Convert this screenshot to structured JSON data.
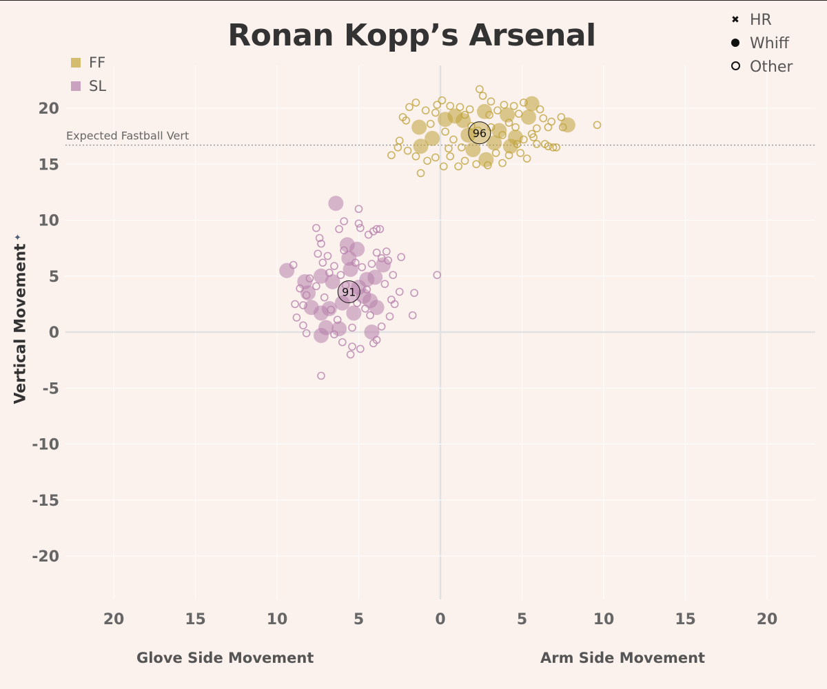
{
  "chart_data": {
    "type": "scatter",
    "title": "Ronan Kopp’s Arsenal",
    "xlabel_left": "Glove Side Movement",
    "xlabel_right": "Arm Side Movement",
    "ylabel": "Vertical Movement",
    "xlim": [
      -20,
      20
    ],
    "ylim": [
      -20,
      20
    ],
    "x_ticks": [
      -20,
      -15,
      -10,
      -5,
      0,
      5,
      10,
      15,
      20
    ],
    "x_tick_labels": [
      "20",
      "15",
      "10",
      "5",
      "0",
      "5",
      "10",
      "15",
      "20"
    ],
    "y_ticks": [
      20,
      15,
      10,
      5,
      0,
      -5,
      -10,
      -15,
      -20
    ],
    "y_tick_labels": [
      "20",
      "15",
      "10",
      "5",
      "0",
      "-5",
      "-10",
      "-15",
      "-20"
    ],
    "grid": true,
    "reference_line": {
      "label": "Expected Fastball Vert",
      "y": 16.7
    },
    "legend_pitch_types": [
      {
        "name": "FF",
        "color": "#d4bd6e"
      },
      {
        "name": "SL",
        "color": "#c9a2c0"
      }
    ],
    "legend_outcomes": [
      {
        "name": "HR",
        "icon": "x-mark-icon"
      },
      {
        "name": "Whiff",
        "icon": "filled-circle-icon"
      },
      {
        "name": "Other",
        "icon": "open-circle-icon"
      }
    ],
    "series": [
      {
        "name": "FF",
        "color": "#bfa23a",
        "average": {
          "x": 2.4,
          "y": 17.8,
          "label": "96"
        },
        "points": [
          {
            "x": 5.6,
            "y": 20.4,
            "t": "whiff"
          },
          {
            "x": 7.8,
            "y": 18.5,
            "t": "whiff"
          },
          {
            "x": -1.3,
            "y": 18.3,
            "t": "whiff"
          },
          {
            "x": 0.9,
            "y": 19.3,
            "t": "whiff"
          },
          {
            "x": 2.7,
            "y": 19.7,
            "t": "whiff"
          },
          {
            "x": 4.1,
            "y": 19.4,
            "t": "whiff"
          },
          {
            "x": 1.7,
            "y": 17.6,
            "t": "whiff"
          },
          {
            "x": 3.3,
            "y": 16.9,
            "t": "whiff"
          },
          {
            "x": 4.6,
            "y": 17.4,
            "t": "whiff"
          },
          {
            "x": 2.8,
            "y": 15.4,
            "t": "whiff"
          },
          {
            "x": -0.5,
            "y": 17.3,
            "t": "whiff"
          },
          {
            "x": -1.2,
            "y": 16.6,
            "t": "whiff"
          },
          {
            "x": 0.3,
            "y": 19.0,
            "t": "whiff"
          },
          {
            "x": 5.4,
            "y": 19.2,
            "t": "whiff"
          },
          {
            "x": 3.6,
            "y": 18.0,
            "t": "whiff"
          },
          {
            "x": 1.4,
            "y": 18.9,
            "t": "whiff"
          },
          {
            "x": 4.3,
            "y": 16.6,
            "t": "whiff"
          },
          {
            "x": 2.0,
            "y": 16.3,
            "t": "whiff"
          },
          {
            "x": -1.5,
            "y": 20.5,
            "t": "other"
          },
          {
            "x": -0.9,
            "y": 19.8,
            "t": "other"
          },
          {
            "x": -0.3,
            "y": 19.6,
            "t": "other"
          },
          {
            "x": 0.1,
            "y": 20.7,
            "t": "other"
          },
          {
            "x": 0.6,
            "y": 20.2,
            "t": "other"
          },
          {
            "x": 1.2,
            "y": 20.1,
            "t": "other"
          },
          {
            "x": 1.8,
            "y": 19.9,
            "t": "other"
          },
          {
            "x": 2.4,
            "y": 21.7,
            "t": "other"
          },
          {
            "x": 2.6,
            "y": 21.1,
            "t": "other"
          },
          {
            "x": 3.1,
            "y": 20.6,
            "t": "other"
          },
          {
            "x": 3.5,
            "y": 19.8,
            "t": "other"
          },
          {
            "x": 3.9,
            "y": 20.3,
            "t": "other"
          },
          {
            "x": 4.5,
            "y": 20.2,
            "t": "other"
          },
          {
            "x": 4.8,
            "y": 19.5,
            "t": "other"
          },
          {
            "x": 5.1,
            "y": 20.5,
            "t": "other"
          },
          {
            "x": 6.1,
            "y": 19.9,
            "t": "other"
          },
          {
            "x": 6.3,
            "y": 19.1,
            "t": "other"
          },
          {
            "x": 6.6,
            "y": 18.3,
            "t": "other"
          },
          {
            "x": 6.8,
            "y": 18.8,
            "t": "other"
          },
          {
            "x": 5.9,
            "y": 18.2,
            "t": "other"
          },
          {
            "x": 5.6,
            "y": 17.7,
            "t": "other"
          },
          {
            "x": 6.4,
            "y": 16.8,
            "t": "other"
          },
          {
            "x": 6.9,
            "y": 16.5,
            "t": "other"
          },
          {
            "x": 6.6,
            "y": 16.6,
            "t": "other"
          },
          {
            "x": 5.9,
            "y": 16.8,
            "t": "other"
          },
          {
            "x": 5.7,
            "y": 17.4,
            "t": "other"
          },
          {
            "x": 5.3,
            "y": 15.5,
            "t": "other"
          },
          {
            "x": 4.9,
            "y": 16.0,
            "t": "other"
          },
          {
            "x": 4.2,
            "y": 15.8,
            "t": "other"
          },
          {
            "x": 3.8,
            "y": 15.1,
            "t": "other"
          },
          {
            "x": 3.4,
            "y": 16.0,
            "t": "other"
          },
          {
            "x": 2.9,
            "y": 14.9,
            "t": "other"
          },
          {
            "x": 2.2,
            "y": 15.0,
            "t": "other"
          },
          {
            "x": 1.5,
            "y": 15.3,
            "t": "other"
          },
          {
            "x": 1.1,
            "y": 14.8,
            "t": "other"
          },
          {
            "x": 0.6,
            "y": 15.7,
            "t": "other"
          },
          {
            "x": 0.2,
            "y": 14.8,
            "t": "other"
          },
          {
            "x": -0.3,
            "y": 15.6,
            "t": "other"
          },
          {
            "x": -0.8,
            "y": 15.3,
            "t": "other"
          },
          {
            "x": -1.2,
            "y": 14.2,
            "t": "other"
          },
          {
            "x": -1.5,
            "y": 15.7,
            "t": "other"
          },
          {
            "x": -2.0,
            "y": 16.2,
            "t": "other"
          },
          {
            "x": -2.6,
            "y": 16.5,
            "t": "other"
          },
          {
            "x": -2.5,
            "y": 17.1,
            "t": "other"
          },
          {
            "x": -3.0,
            "y": 15.8,
            "t": "other"
          },
          {
            "x": -2.1,
            "y": 18.9,
            "t": "other"
          },
          {
            "x": -2.3,
            "y": 19.2,
            "t": "other"
          },
          {
            "x": -1.9,
            "y": 20.1,
            "t": "other"
          },
          {
            "x": -0.6,
            "y": 18.6,
            "t": "other"
          },
          {
            "x": 0.3,
            "y": 17.9,
            "t": "other"
          },
          {
            "x": 0.8,
            "y": 17.2,
            "t": "other"
          },
          {
            "x": 1.3,
            "y": 16.5,
            "t": "other"
          },
          {
            "x": 1.9,
            "y": 18.4,
            "t": "other"
          },
          {
            "x": 3.1,
            "y": 18.3,
            "t": "other"
          },
          {
            "x": 3.8,
            "y": 17.6,
            "t": "other"
          },
          {
            "x": 4.2,
            "y": 18.7,
            "t": "other"
          },
          {
            "x": 4.6,
            "y": 18.3,
            "t": "other"
          },
          {
            "x": 5.1,
            "y": 17.2,
            "t": "other"
          },
          {
            "x": 7.1,
            "y": 16.5,
            "t": "other"
          },
          {
            "x": 7.4,
            "y": 19.2,
            "t": "other"
          },
          {
            "x": 7.5,
            "y": 18.3,
            "t": "other"
          },
          {
            "x": 9.6,
            "y": 18.5,
            "t": "other"
          },
          {
            "x": -0.2,
            "y": 20.3,
            "t": "other"
          },
          {
            "x": 1.5,
            "y": 19.4,
            "t": "other"
          },
          {
            "x": 2.3,
            "y": 18.0,
            "t": "other"
          },
          {
            "x": 3.0,
            "y": 19.4,
            "t": "other"
          },
          {
            "x": 4.7,
            "y": 16.8,
            "t": "other"
          },
          {
            "x": 0.5,
            "y": 16.4,
            "t": "other"
          }
        ]
      },
      {
        "name": "SL",
        "color": "#b67fab",
        "average": {
          "x": -5.6,
          "y": 3.6,
          "label": "91"
        },
        "points": [
          {
            "x": -6.4,
            "y": 11.5,
            "t": "whiff"
          },
          {
            "x": -9.4,
            "y": 5.5,
            "t": "whiff"
          },
          {
            "x": -8.3,
            "y": 4.5,
            "t": "whiff"
          },
          {
            "x": -8.1,
            "y": 3.5,
            "t": "whiff"
          },
          {
            "x": -7.9,
            "y": 2.2,
            "t": "whiff"
          },
          {
            "x": -7.3,
            "y": 1.7,
            "t": "whiff"
          },
          {
            "x": -7.0,
            "y": 0.4,
            "t": "whiff"
          },
          {
            "x": -7.3,
            "y": -0.3,
            "t": "whiff"
          },
          {
            "x": -6.2,
            "y": 0.3,
            "t": "whiff"
          },
          {
            "x": -5.7,
            "y": 7.8,
            "t": "whiff"
          },
          {
            "x": -5.1,
            "y": 7.4,
            "t": "whiff"
          },
          {
            "x": -5.6,
            "y": 6.6,
            "t": "whiff"
          },
          {
            "x": -4.5,
            "y": 4.7,
            "t": "whiff"
          },
          {
            "x": -4.0,
            "y": 4.9,
            "t": "whiff"
          },
          {
            "x": -3.5,
            "y": 6.0,
            "t": "whiff"
          },
          {
            "x": -3.9,
            "y": 2.2,
            "t": "whiff"
          },
          {
            "x": -4.3,
            "y": 2.8,
            "t": "whiff"
          },
          {
            "x": -4.2,
            "y": 0.0,
            "t": "whiff"
          },
          {
            "x": -5.3,
            "y": 1.7,
            "t": "whiff"
          },
          {
            "x": -6.0,
            "y": 2.6,
            "t": "whiff"
          },
          {
            "x": -6.6,
            "y": 4.5,
            "t": "whiff"
          },
          {
            "x": -7.3,
            "y": 5.0,
            "t": "whiff"
          },
          {
            "x": -5.0,
            "y": 4.0,
            "t": "whiff"
          },
          {
            "x": -4.7,
            "y": 3.2,
            "t": "whiff"
          },
          {
            "x": -5.5,
            "y": 5.6,
            "t": "whiff"
          },
          {
            "x": -6.8,
            "y": 2.1,
            "t": "whiff"
          },
          {
            "x": -9.0,
            "y": 6.0,
            "t": "other"
          },
          {
            "x": -7.6,
            "y": 9.3,
            "t": "other"
          },
          {
            "x": -7.4,
            "y": 8.4,
            "t": "other"
          },
          {
            "x": -7.3,
            "y": 7.9,
            "t": "other"
          },
          {
            "x": -7.5,
            "y": 7.0,
            "t": "other"
          },
          {
            "x": -7.2,
            "y": 6.2,
            "t": "other"
          },
          {
            "x": -6.9,
            "y": 6.8,
            "t": "other"
          },
          {
            "x": -6.5,
            "y": 5.9,
            "t": "other"
          },
          {
            "x": -6.2,
            "y": 9.2,
            "t": "other"
          },
          {
            "x": -5.9,
            "y": 9.9,
            "t": "other"
          },
          {
            "x": -5.0,
            "y": 11.0,
            "t": "other"
          },
          {
            "x": -5.0,
            "y": 9.7,
            "t": "other"
          },
          {
            "x": -4.9,
            "y": 9.3,
            "t": "other"
          },
          {
            "x": -4.4,
            "y": 8.7,
            "t": "other"
          },
          {
            "x": -4.1,
            "y": 9.0,
            "t": "other"
          },
          {
            "x": -3.9,
            "y": 9.2,
            "t": "other"
          },
          {
            "x": -3.7,
            "y": 9.2,
            "t": "other"
          },
          {
            "x": -3.9,
            "y": 7.1,
            "t": "other"
          },
          {
            "x": -3.6,
            "y": 6.6,
            "t": "other"
          },
          {
            "x": -3.2,
            "y": 6.4,
            "t": "other"
          },
          {
            "x": -2.4,
            "y": 6.7,
            "t": "other"
          },
          {
            "x": -2.9,
            "y": 5.1,
            "t": "other"
          },
          {
            "x": -3.4,
            "y": 4.3,
            "t": "other"
          },
          {
            "x": -3.0,
            "y": 2.9,
            "t": "other"
          },
          {
            "x": -2.8,
            "y": 2.5,
            "t": "other"
          },
          {
            "x": -3.1,
            "y": 1.4,
            "t": "other"
          },
          {
            "x": -3.6,
            "y": 0.5,
            "t": "other"
          },
          {
            "x": -3.9,
            "y": -0.7,
            "t": "other"
          },
          {
            "x": -4.1,
            "y": -1.0,
            "t": "other"
          },
          {
            "x": -4.9,
            "y": -1.5,
            "t": "other"
          },
          {
            "x": -5.4,
            "y": -1.3,
            "t": "other"
          },
          {
            "x": -5.5,
            "y": -2.0,
            "t": "other"
          },
          {
            "x": -6.0,
            "y": -0.9,
            "t": "other"
          },
          {
            "x": -7.3,
            "y": -3.9,
            "t": "other"
          },
          {
            "x": -8.2,
            "y": -0.1,
            "t": "other"
          },
          {
            "x": -8.4,
            "y": 0.6,
            "t": "other"
          },
          {
            "x": -8.8,
            "y": 1.3,
            "t": "other"
          },
          {
            "x": -8.9,
            "y": 2.5,
            "t": "other"
          },
          {
            "x": -8.4,
            "y": 2.4,
            "t": "other"
          },
          {
            "x": -8.2,
            "y": 3.3,
            "t": "other"
          },
          {
            "x": -8.6,
            "y": 3.9,
            "t": "other"
          },
          {
            "x": -8.0,
            "y": 4.8,
            "t": "other"
          },
          {
            "x": -7.6,
            "y": 4.1,
            "t": "other"
          },
          {
            "x": -7.1,
            "y": 3.1,
            "t": "other"
          },
          {
            "x": -6.7,
            "y": 2.0,
            "t": "other"
          },
          {
            "x": -6.3,
            "y": 1.1,
            "t": "other"
          },
          {
            "x": -6.1,
            "y": 5.1,
            "t": "other"
          },
          {
            "x": -5.8,
            "y": 4.2,
            "t": "other"
          },
          {
            "x": -5.2,
            "y": 6.2,
            "t": "other"
          },
          {
            "x": -4.8,
            "y": 5.8,
            "t": "other"
          },
          {
            "x": -4.5,
            "y": 3.8,
            "t": "other"
          },
          {
            "x": -4.3,
            "y": 1.5,
            "t": "other"
          },
          {
            "x": -4.6,
            "y": 2.1,
            "t": "other"
          },
          {
            "x": -5.1,
            "y": 2.6,
            "t": "other"
          },
          {
            "x": -5.4,
            "y": 0.4,
            "t": "other"
          },
          {
            "x": -6.5,
            "y": -0.2,
            "t": "other"
          },
          {
            "x": -2.5,
            "y": 3.6,
            "t": "other"
          },
          {
            "x": -1.6,
            "y": 3.5,
            "t": "other"
          },
          {
            "x": -1.7,
            "y": 1.5,
            "t": "other"
          },
          {
            "x": -0.2,
            "y": 5.1,
            "t": "other"
          },
          {
            "x": -3.3,
            "y": 7.2,
            "t": "other"
          },
          {
            "x": -5.9,
            "y": 7.3,
            "t": "other"
          },
          {
            "x": -6.8,
            "y": 5.3,
            "t": "other"
          },
          {
            "x": -4.2,
            "y": 6.1,
            "t": "other"
          }
        ]
      }
    ]
  }
}
